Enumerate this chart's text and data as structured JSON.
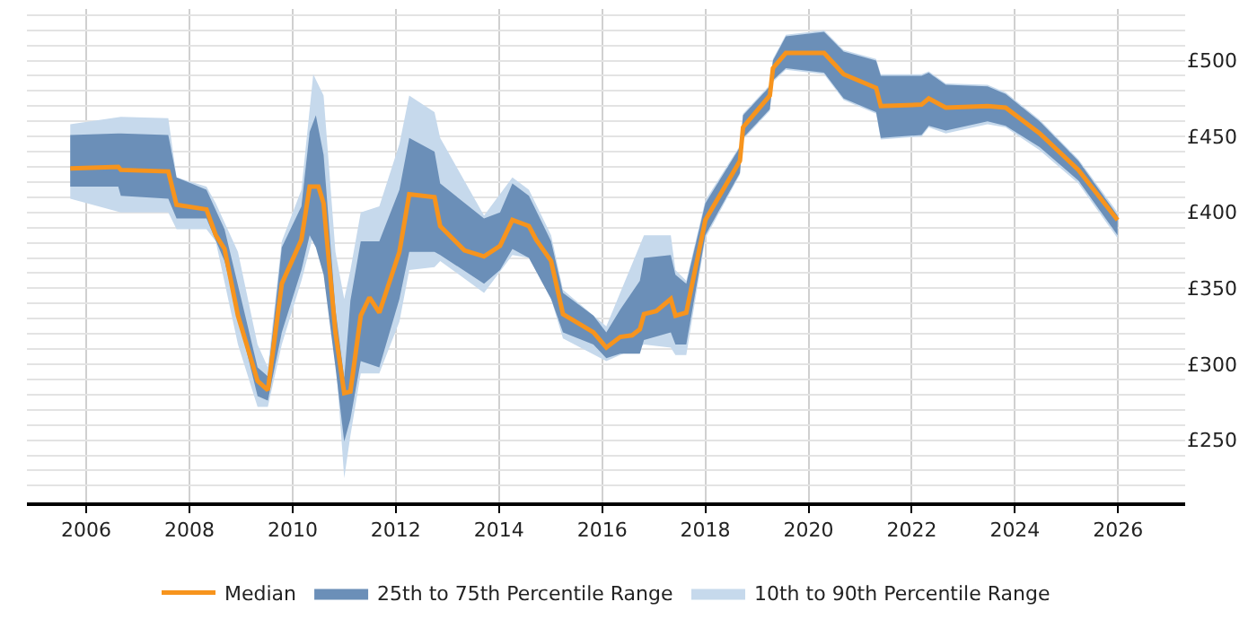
{
  "chart_data": {
    "type": "line",
    "xlim": [
      2004.85,
      2027.3
    ],
    "ylim": [
      209,
      534
    ],
    "xticks": [
      2006,
      2008,
      2010,
      2012,
      2014,
      2016,
      2018,
      2020,
      2022,
      2024,
      2026
    ],
    "yticks": [
      {
        "value": 220,
        "label": null
      },
      {
        "value": 230,
        "label": null
      },
      {
        "value": 240,
        "label": null
      },
      {
        "value": 250,
        "label": "£250"
      },
      {
        "value": 260,
        "label": null
      },
      {
        "value": 270,
        "label": null
      },
      {
        "value": 280,
        "label": null
      },
      {
        "value": 290,
        "label": null
      },
      {
        "value": 300,
        "label": "£300"
      },
      {
        "value": 310,
        "label": null
      },
      {
        "value": 320,
        "label": null
      },
      {
        "value": 330,
        "label": null
      },
      {
        "value": 340,
        "label": null
      },
      {
        "value": 350,
        "label": "£350"
      },
      {
        "value": 360,
        "label": null
      },
      {
        "value": 370,
        "label": null
      },
      {
        "value": 380,
        "label": null
      },
      {
        "value": 390,
        "label": null
      },
      {
        "value": 400,
        "label": "£400"
      },
      {
        "value": 410,
        "label": null
      },
      {
        "value": 420,
        "label": null
      },
      {
        "value": 430,
        "label": null
      },
      {
        "value": 440,
        "label": null
      },
      {
        "value": 450,
        "label": "£450"
      },
      {
        "value": 460,
        "label": null
      },
      {
        "value": 470,
        "label": null
      },
      {
        "value": 480,
        "label": null
      },
      {
        "value": 490,
        "label": null
      },
      {
        "value": 500,
        "label": "£500"
      },
      {
        "value": 510,
        "label": null
      },
      {
        "value": 520,
        "label": null
      },
      {
        "value": 530,
        "label": null
      }
    ],
    "grid": true,
    "legend": "bottom",
    "marker": "none",
    "line_style": "solid",
    "series": [
      {
        "name": "10th to 90th Percentile Range",
        "type": "area",
        "color": "#c6d9ec",
        "values": [
          null,
          null,
          null,
          null,
          null,
          null,
          null,
          null,
          null,
          null,
          null,
          null,
          null,
          null,
          null,
          null,
          null,
          null,
          null,
          null,
          null,
          null,
          null,
          null,
          null,
          null,
          null,
          null,
          null,
          null,
          null,
          null,
          null,
          null,
          null,
          null,
          null,
          null,
          null,
          null,
          null,
          null,
          null,
          null,
          null,
          null,
          null,
          null,
          null,
          null
        ],
        "x": [
          2005.69,
          2006.67,
          2007.59,
          2007.75,
          2008.33,
          2008.51,
          2008.94,
          2009.32,
          2009.52,
          2009.79,
          2010.17,
          2010.4,
          2010.6,
          2010.83,
          2011.0,
          2011.12,
          2011.32,
          2011.68,
          2012.07,
          2012.26,
          2012.75,
          2012.86,
          2013.71,
          2014.26,
          2014.58,
          2015.01,
          2015.24,
          2016.08,
          2016.81,
          2017.33,
          2017.42,
          2017.63,
          2018.0,
          2018.67,
          2018.73,
          2019.25,
          2019.31,
          2019.56,
          2020.3,
          2020.68,
          2021.31,
          2021.4,
          2022.19,
          2022.33,
          2022.66,
          2023.47,
          2023.82,
          2024.48,
          2025.23,
          2025.99
        ],
        "upper": [
          458,
          463,
          462,
          423,
          417,
          406,
          374,
          313,
          298,
          381,
          415,
          491,
          477,
          374,
          343,
          362,
          400,
          404,
          445,
          477,
          466,
          449,
          398,
          423,
          415,
          385,
          349,
          325,
          385,
          385,
          362,
          355,
          408,
          444,
          465,
          484,
          501,
          517,
          520,
          507,
          501,
          491,
          491,
          493,
          485,
          484,
          479,
          461,
          435,
          400
        ],
        "lower": [
          409,
          400,
          400,
          389,
          389,
          381,
          313,
          272,
          272,
          313,
          355,
          385,
          362,
          306,
          225,
          253,
          294,
          294,
          328,
          362,
          364,
          368,
          347,
          372,
          370,
          343,
          317,
          302,
          313,
          311,
          306,
          306,
          383,
          425,
          448,
          467,
          486,
          494,
          491,
          474,
          465,
          448,
          450,
          456,
          452,
          458,
          456,
          441,
          419,
          383
        ]
      },
      {
        "name": "25th to 75th Percentile Range",
        "type": "area",
        "color": "#6b8fb8",
        "values": [
          null,
          null,
          null,
          null,
          null,
          null,
          null,
          null,
          null,
          null,
          null,
          null,
          null,
          null,
          null,
          null,
          null,
          null,
          null,
          null,
          null,
          null,
          null,
          null,
          null,
          null,
          null,
          null,
          null,
          null,
          null,
          null,
          null,
          null,
          null,
          null,
          null,
          null,
          null,
          null,
          null,
          null,
          null,
          null,
          null,
          null,
          null,
          null,
          null,
          null,
          null,
          null,
          null,
          null,
          null
        ],
        "x": [
          2005.69,
          2006.62,
          2006.67,
          2007.59,
          2007.75,
          2008.33,
          2008.68,
          2009.32,
          2009.52,
          2009.79,
          2010.17,
          2010.33,
          2010.45,
          2010.6,
          2010.83,
          2011.0,
          2011.12,
          2011.32,
          2011.68,
          2012.07,
          2012.26,
          2012.75,
          2012.86,
          2013.71,
          2014.02,
          2014.26,
          2014.58,
          2015.01,
          2015.24,
          2015.83,
          2016.08,
          2016.35,
          2016.73,
          2016.81,
          2017.33,
          2017.42,
          2017.63,
          2018.0,
          2018.67,
          2018.73,
          2019.25,
          2019.31,
          2019.56,
          2020.3,
          2020.68,
          2021.31,
          2021.4,
          2022.19,
          2022.33,
          2022.66,
          2023.47,
          2023.82,
          2024.48,
          2025.23,
          2025.99
        ],
        "upper": [
          451,
          452,
          452,
          451,
          423,
          415,
          389,
          298,
          292,
          377,
          404,
          453,
          464,
          438,
          336,
          291,
          342,
          381,
          381,
          415,
          449,
          440,
          419,
          396,
          400,
          419,
          411,
          381,
          347,
          332,
          321,
          336,
          355,
          370,
          372,
          359,
          353,
          406,
          443,
          464,
          483,
          500,
          516,
          519,
          506,
          500,
          490,
          490,
          492,
          484,
          483,
          478,
          460,
          434,
          398
        ],
        "lower": [
          417,
          417,
          411,
          409,
          396,
          396,
          368,
          279,
          276,
          321,
          362,
          385,
          377,
          359,
          298,
          249,
          264,
          302,
          298,
          343,
          374,
          374,
          372,
          353,
          362,
          376,
          370,
          343,
          321,
          313,
          304,
          307,
          307,
          316,
          321,
          313,
          313,
          385,
          426,
          449,
          468,
          487,
          495,
          492,
          475,
          466,
          449,
          451,
          457,
          454,
          460,
          457,
          443,
          421,
          385
        ]
      },
      {
        "name": "Median",
        "color": "#f7941d",
        "x": [
          2005.69,
          2006.62,
          2006.67,
          2007.59,
          2007.75,
          2008.33,
          2008.51,
          2008.68,
          2008.94,
          2009.32,
          2009.52,
          2009.79,
          2010.17,
          2010.33,
          2010.5,
          2010.6,
          2010.83,
          2011.0,
          2011.12,
          2011.32,
          2011.49,
          2011.68,
          2012.07,
          2012.26,
          2012.75,
          2012.86,
          2013.33,
          2013.71,
          2014.02,
          2014.26,
          2014.58,
          2014.72,
          2015.01,
          2015.24,
          2015.83,
          2016.08,
          2016.35,
          2016.58,
          2016.73,
          2016.81,
          2017.05,
          2017.33,
          2017.42,
          2017.63,
          2017.8,
          2018.0,
          2018.67,
          2018.73,
          2019.25,
          2019.31,
          2019.56,
          2020.3,
          2020.68,
          2021.31,
          2021.4,
          2022.19,
          2022.33,
          2022.66,
          2023.47,
          2023.82,
          2024.48,
          2025.23,
          2025.99
        ],
        "values": [
          429,
          430,
          428,
          427,
          405,
          402,
          385,
          376,
          332,
          289,
          283,
          353,
          382,
          417,
          417,
          406,
          321,
          281,
          282,
          332,
          344,
          334,
          374,
          412,
          410,
          391,
          375,
          371,
          378,
          395,
          391,
          382,
          368,
          333,
          321,
          311,
          318,
          319,
          323,
          333,
          335,
          343,
          332,
          334,
          362,
          395,
          434,
          456,
          477,
          495,
          505,
          505,
          491,
          482,
          470,
          471,
          475,
          469,
          470,
          469,
          452,
          428,
          395
        ]
      }
    ]
  }
}
